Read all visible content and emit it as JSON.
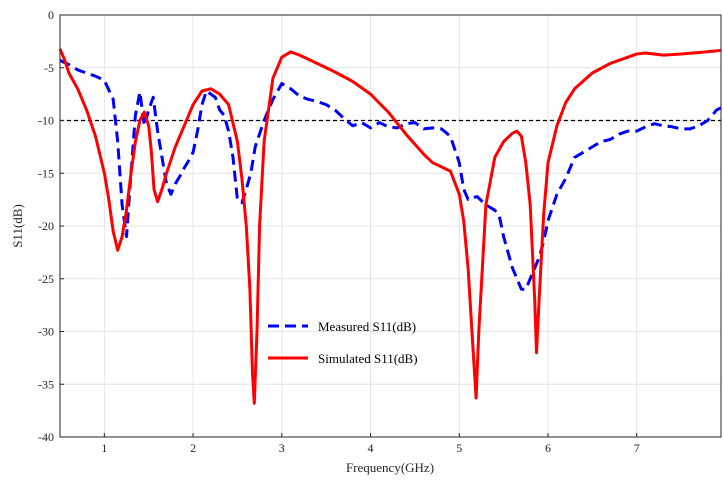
{
  "chart_data": {
    "type": "line",
    "title": "",
    "xlabel": "Frequency(GHz)",
    "ylabel": "S11(dB)",
    "xlim": [
      0.5,
      7.95
    ],
    "ylim": [
      -40,
      0
    ],
    "xticks": [
      1,
      2,
      3,
      4,
      5,
      6,
      7
    ],
    "yticks": [
      0,
      -5,
      -10,
      -15,
      -20,
      -25,
      -30,
      -35,
      -40
    ],
    "xtick_labels": [
      "1",
      "2",
      "3",
      "4",
      "5",
      "6",
      "7"
    ],
    "ytick_labels": [
      "0",
      "-5",
      "-10",
      "-15",
      "-20",
      "-25",
      "-30",
      "-35",
      "-40"
    ],
    "grid": true,
    "legend_position": "lower-center",
    "reference_line": {
      "y": -10,
      "style": "dashed",
      "color": "#000000"
    },
    "series": [
      {
        "name": "Measured S11(dB)",
        "style": "dashed",
        "color": "#0000ff",
        "points": [
          [
            0.5,
            -4.3
          ],
          [
            0.6,
            -4.7
          ],
          [
            0.7,
            -5.2
          ],
          [
            0.8,
            -5.5
          ],
          [
            0.9,
            -5.8
          ],
          [
            1.0,
            -6.2
          ],
          [
            1.1,
            -8.0
          ],
          [
            1.15,
            -12.0
          ],
          [
            1.2,
            -18.0
          ],
          [
            1.25,
            -21.0
          ],
          [
            1.3,
            -15.0
          ],
          [
            1.35,
            -9.5
          ],
          [
            1.4,
            -7.3
          ],
          [
            1.45,
            -10.5
          ],
          [
            1.5,
            -9.0
          ],
          [
            1.55,
            -7.8
          ],
          [
            1.6,
            -11.0
          ],
          [
            1.65,
            -13.5
          ],
          [
            1.7,
            -16.0
          ],
          [
            1.75,
            -17.0
          ],
          [
            1.8,
            -16.0
          ],
          [
            1.85,
            -15.3
          ],
          [
            1.9,
            -14.5
          ],
          [
            1.95,
            -13.8
          ],
          [
            2.0,
            -13.0
          ],
          [
            2.05,
            -11.0
          ],
          [
            2.1,
            -8.5
          ],
          [
            2.15,
            -7.2
          ],
          [
            2.2,
            -7.5
          ],
          [
            2.25,
            -7.8
          ],
          [
            2.3,
            -9.0
          ],
          [
            2.35,
            -9.5
          ],
          [
            2.4,
            -11.0
          ],
          [
            2.45,
            -13.5
          ],
          [
            2.5,
            -17.5
          ],
          [
            2.55,
            -17.8
          ],
          [
            2.6,
            -16.5
          ],
          [
            2.65,
            -15.0
          ],
          [
            2.7,
            -12.5
          ],
          [
            2.8,
            -10.0
          ],
          [
            2.9,
            -8.0
          ],
          [
            3.0,
            -6.5
          ],
          [
            3.1,
            -7.0
          ],
          [
            3.2,
            -7.7
          ],
          [
            3.3,
            -8.0
          ],
          [
            3.4,
            -8.2
          ],
          [
            3.5,
            -8.5
          ],
          [
            3.6,
            -9.0
          ],
          [
            3.7,
            -9.8
          ],
          [
            3.8,
            -10.5
          ],
          [
            3.9,
            -10.2
          ],
          [
            4.0,
            -10.7
          ],
          [
            4.1,
            -10.2
          ],
          [
            4.2,
            -10.6
          ],
          [
            4.3,
            -10.7
          ],
          [
            4.4,
            -10.3
          ],
          [
            4.5,
            -10.2
          ],
          [
            4.6,
            -10.8
          ],
          [
            4.7,
            -10.7
          ],
          [
            4.8,
            -10.8
          ],
          [
            4.9,
            -11.5
          ],
          [
            5.0,
            -14.0
          ],
          [
            5.05,
            -16.5
          ],
          [
            5.1,
            -17.5
          ],
          [
            5.2,
            -17.2
          ],
          [
            5.3,
            -18.0
          ],
          [
            5.4,
            -18.5
          ],
          [
            5.45,
            -19.0
          ],
          [
            5.5,
            -21.0
          ],
          [
            5.6,
            -24.0
          ],
          [
            5.7,
            -26.0
          ],
          [
            5.75,
            -26.0
          ],
          [
            5.8,
            -25.0
          ],
          [
            5.85,
            -24.0
          ],
          [
            5.9,
            -23.0
          ],
          [
            5.95,
            -21.5
          ],
          [
            6.0,
            -19.5
          ],
          [
            6.1,
            -17.0
          ],
          [
            6.2,
            -15.5
          ],
          [
            6.3,
            -13.5
          ],
          [
            6.4,
            -13.0
          ],
          [
            6.5,
            -12.5
          ],
          [
            6.6,
            -12.0
          ],
          [
            6.7,
            -11.8
          ],
          [
            6.8,
            -11.3
          ],
          [
            6.9,
            -11.0
          ],
          [
            7.0,
            -11.0
          ],
          [
            7.1,
            -10.6
          ],
          [
            7.2,
            -10.3
          ],
          [
            7.3,
            -10.5
          ],
          [
            7.4,
            -10.6
          ],
          [
            7.5,
            -10.8
          ],
          [
            7.6,
            -10.8
          ],
          [
            7.7,
            -10.5
          ],
          [
            7.8,
            -10.0
          ],
          [
            7.9,
            -9.0
          ],
          [
            7.95,
            -8.8
          ]
        ]
      },
      {
        "name": "Simulated S11(dB)",
        "style": "solid",
        "color": "#ff0000",
        "points": [
          [
            0.5,
            -3.2
          ],
          [
            0.55,
            -4.2
          ],
          [
            0.6,
            -5.5
          ],
          [
            0.7,
            -7.0
          ],
          [
            0.8,
            -9.0
          ],
          [
            0.9,
            -11.5
          ],
          [
            1.0,
            -15.0
          ],
          [
            1.05,
            -17.5
          ],
          [
            1.1,
            -20.5
          ],
          [
            1.15,
            -22.3
          ],
          [
            1.2,
            -21.0
          ],
          [
            1.25,
            -18.5
          ],
          [
            1.3,
            -15.0
          ],
          [
            1.35,
            -12.0
          ],
          [
            1.4,
            -10.0
          ],
          [
            1.45,
            -9.2
          ],
          [
            1.5,
            -10.5
          ],
          [
            1.53,
            -13.0
          ],
          [
            1.56,
            -16.5
          ],
          [
            1.6,
            -17.7
          ],
          [
            1.65,
            -16.5
          ],
          [
            1.7,
            -15.0
          ],
          [
            1.8,
            -12.5
          ],
          [
            1.9,
            -10.5
          ],
          [
            2.0,
            -8.5
          ],
          [
            2.1,
            -7.2
          ],
          [
            2.2,
            -7.0
          ],
          [
            2.3,
            -7.5
          ],
          [
            2.4,
            -8.5
          ],
          [
            2.5,
            -12.0
          ],
          [
            2.55,
            -15.5
          ],
          [
            2.6,
            -20.0
          ],
          [
            2.64,
            -26.0
          ],
          [
            2.67,
            -34.0
          ],
          [
            2.69,
            -36.8
          ],
          [
            2.72,
            -30.0
          ],
          [
            2.75,
            -20.0
          ],
          [
            2.8,
            -12.0
          ],
          [
            2.9,
            -6.0
          ],
          [
            3.0,
            -4.0
          ],
          [
            3.1,
            -3.5
          ],
          [
            3.2,
            -3.8
          ],
          [
            3.4,
            -4.6
          ],
          [
            3.6,
            -5.4
          ],
          [
            3.8,
            -6.3
          ],
          [
            4.0,
            -7.5
          ],
          [
            4.2,
            -9.2
          ],
          [
            4.4,
            -11.3
          ],
          [
            4.6,
            -13.2
          ],
          [
            4.7,
            -14.0
          ],
          [
            4.8,
            -14.4
          ],
          [
            4.9,
            -14.8
          ],
          [
            5.0,
            -17.0
          ],
          [
            5.05,
            -19.5
          ],
          [
            5.1,
            -24.0
          ],
          [
            5.15,
            -31.0
          ],
          [
            5.19,
            -36.3
          ],
          [
            5.22,
            -30.0
          ],
          [
            5.3,
            -18.0
          ],
          [
            5.4,
            -13.5
          ],
          [
            5.5,
            -12.0
          ],
          [
            5.6,
            -11.2
          ],
          [
            5.65,
            -11.0
          ],
          [
            5.7,
            -11.5
          ],
          [
            5.75,
            -14.0
          ],
          [
            5.8,
            -18.0
          ],
          [
            5.85,
            -27.0
          ],
          [
            5.87,
            -32.0
          ],
          [
            5.9,
            -27.0
          ],
          [
            5.95,
            -19.0
          ],
          [
            6.0,
            -14.0
          ],
          [
            6.1,
            -10.5
          ],
          [
            6.2,
            -8.3
          ],
          [
            6.3,
            -7.0
          ],
          [
            6.5,
            -5.5
          ],
          [
            6.7,
            -4.6
          ],
          [
            6.9,
            -4.0
          ],
          [
            7.0,
            -3.7
          ],
          [
            7.1,
            -3.6
          ],
          [
            7.3,
            -3.8
          ],
          [
            7.5,
            -3.7
          ],
          [
            7.7,
            -3.55
          ],
          [
            7.9,
            -3.4
          ],
          [
            7.95,
            -3.35
          ]
        ]
      }
    ]
  }
}
